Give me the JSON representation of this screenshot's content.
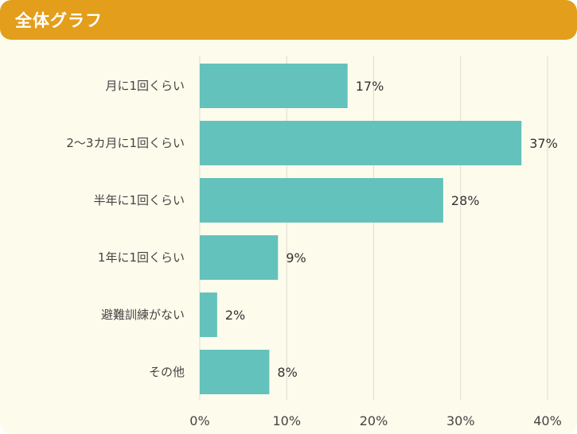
{
  "header": {
    "title": "全体グラフ"
  },
  "colors": {
    "header": "#e39e1b",
    "background": "#fdfbec",
    "bar": "#63c2bb",
    "grid": "#dedcd0"
  },
  "chart_data": {
    "type": "bar",
    "orientation": "horizontal",
    "title": "",
    "xlabel": "",
    "ylabel": "",
    "categories": [
      "月に1回くらい",
      "2～3カ月に1回くらい",
      "半年に1回くらい",
      "1年に1回くらい",
      "避難訓練がない",
      "その他"
    ],
    "values": [
      17,
      37,
      28,
      9,
      2,
      8
    ],
    "value_labels": [
      "17%",
      "37%",
      "28%",
      "9%",
      "2%",
      "8%"
    ],
    "xlim": [
      0,
      40
    ],
    "ticks": [
      0,
      10,
      20,
      30,
      40
    ],
    "tick_labels": [
      "0%",
      "10%",
      "20%",
      "30%",
      "40%"
    ],
    "grid": true,
    "legend": "none"
  }
}
